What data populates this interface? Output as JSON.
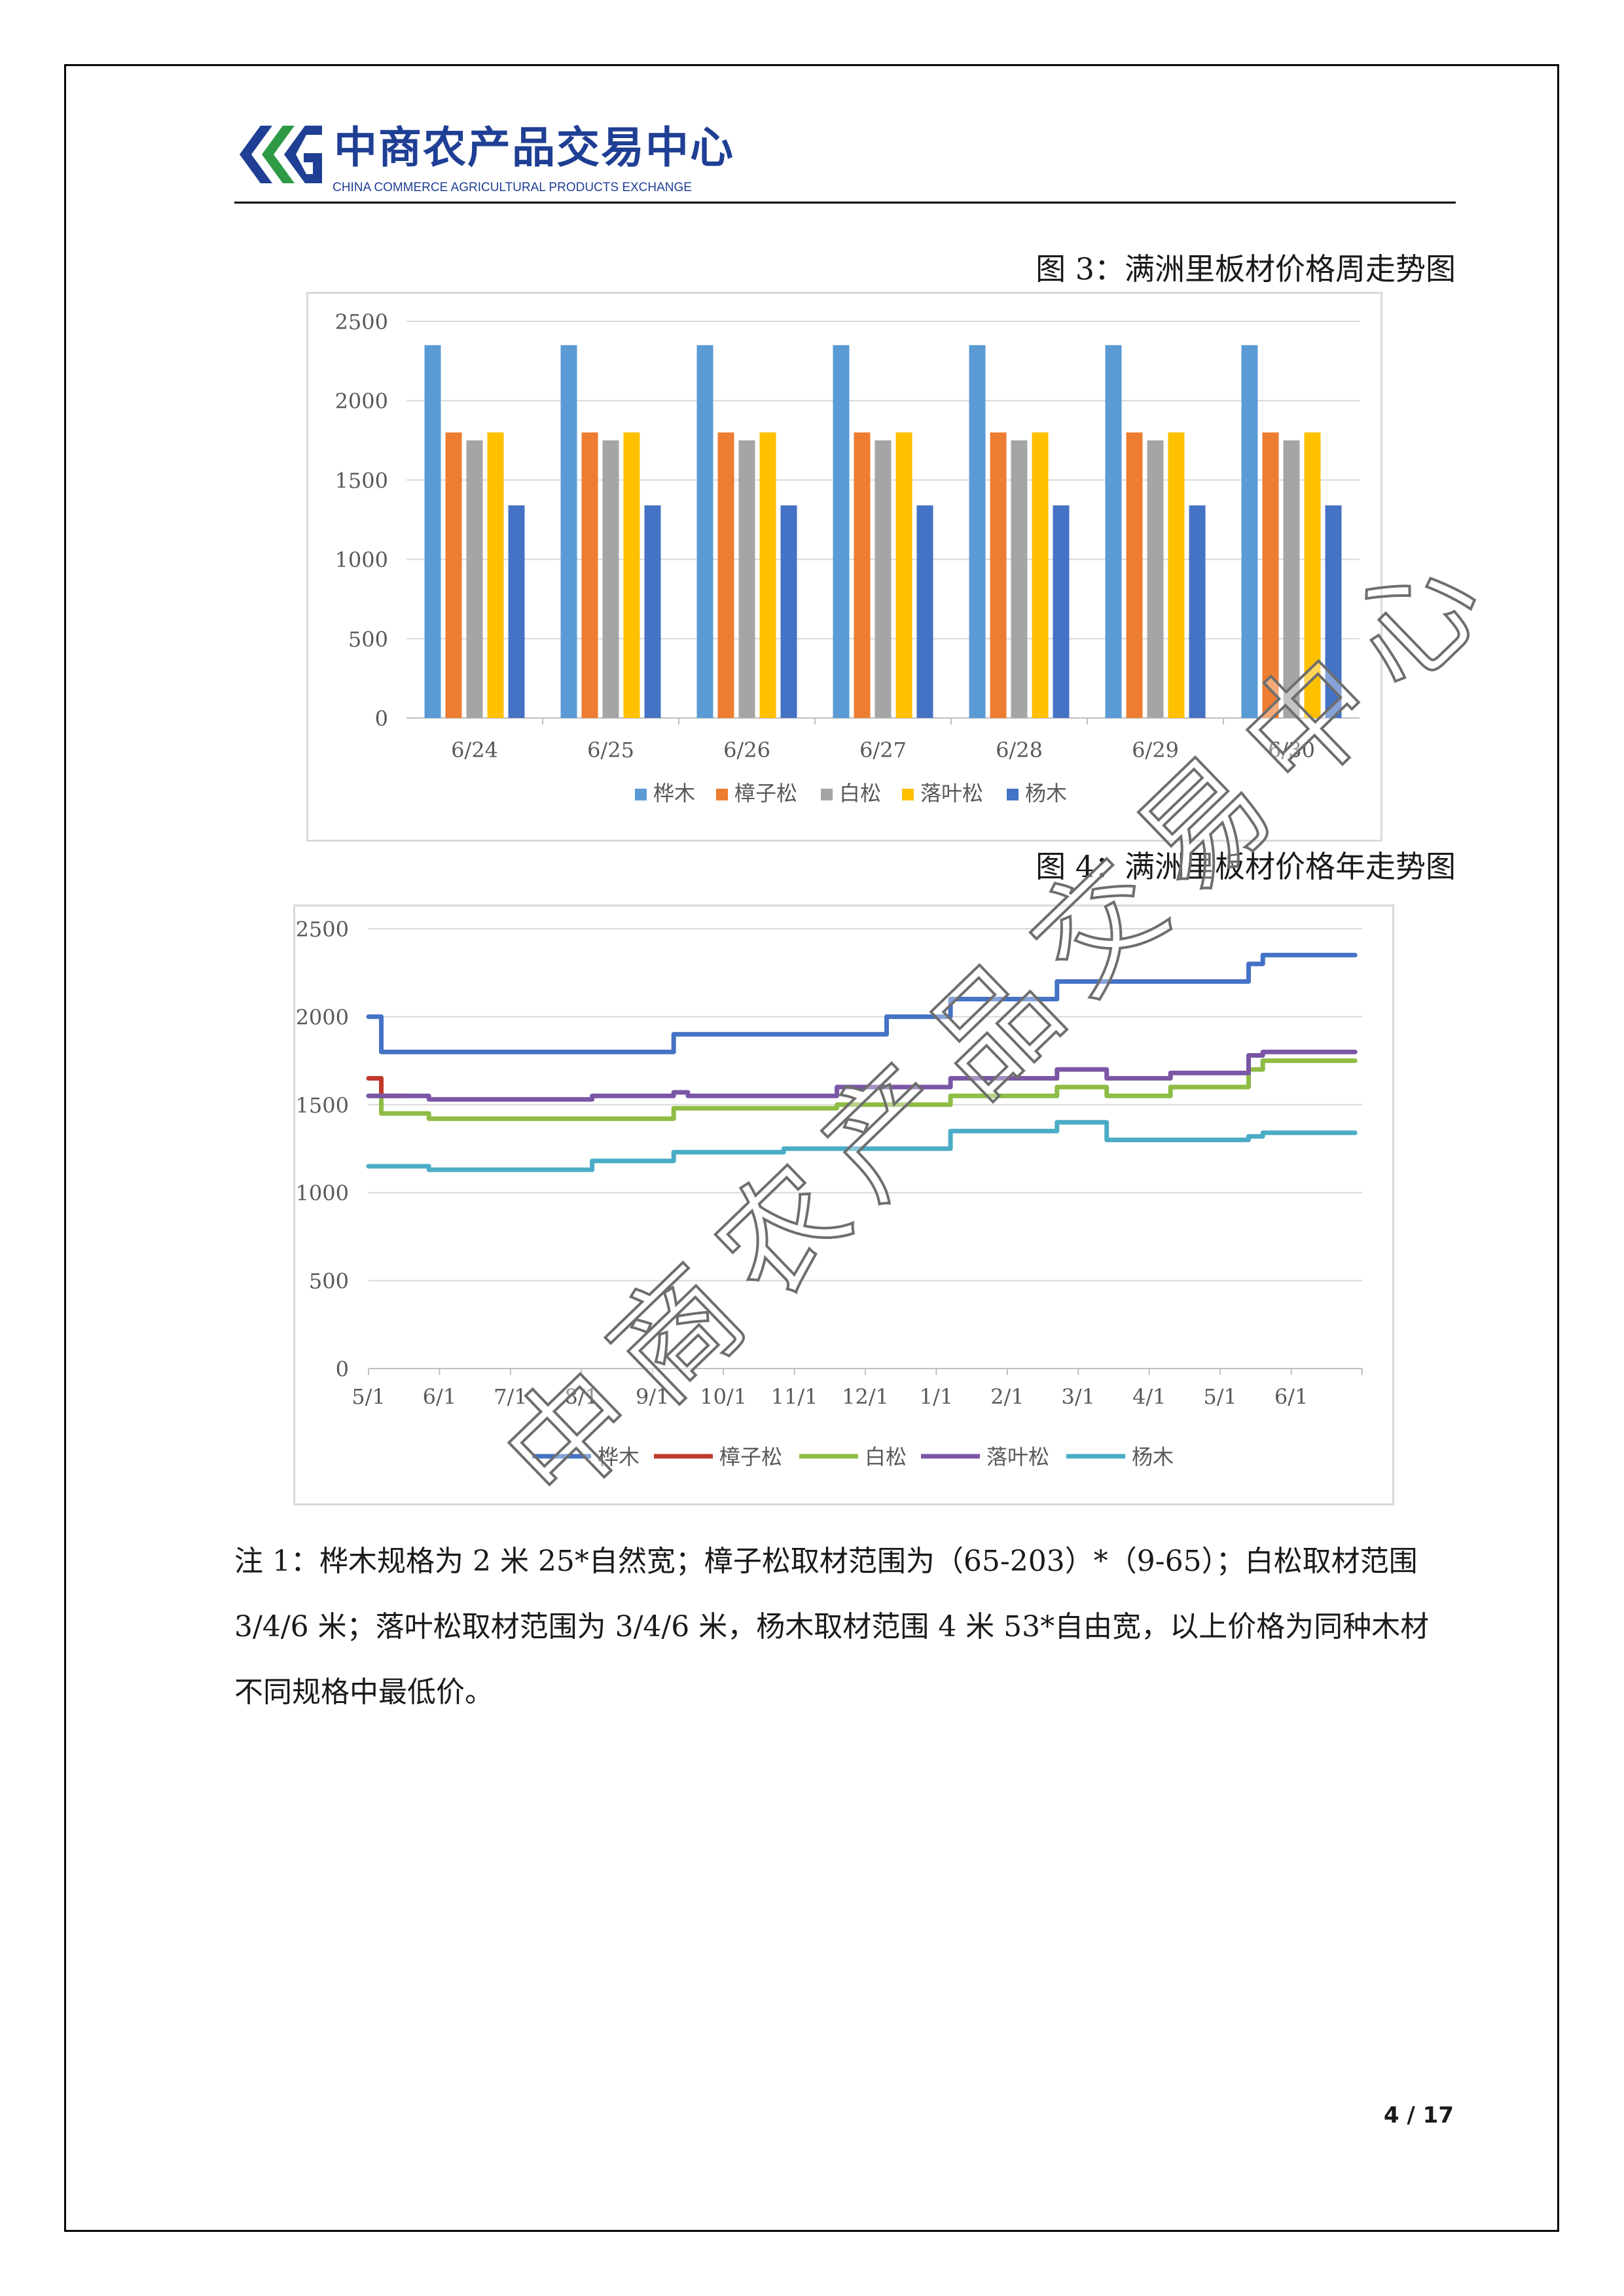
{
  "header": {
    "logo_cn": "中商农产品交易中心",
    "logo_en": "CHINA COMMERCE AGRICULTURAL PRODUCTS EXCHANGE",
    "logo_colors": [
      "#1f3f94",
      "#2e9a45"
    ]
  },
  "figures": [
    {
      "caption": "图 3：满洲里板材价格周走势图"
    },
    {
      "caption": "图 4：满洲里板材价格年走势图"
    }
  ],
  "chart_data": [
    {
      "type": "bar",
      "categories": [
        "6/24",
        "6/25",
        "6/26",
        "6/27",
        "6/28",
        "6/29",
        "6/30"
      ],
      "series": [
        {
          "name": "桦木",
          "color": "#5b9bd5",
          "values": [
            2350,
            2350,
            2350,
            2350,
            2350,
            2350,
            2350
          ]
        },
        {
          "name": "樟子松",
          "color": "#ed7d31",
          "values": [
            1800,
            1800,
            1800,
            1800,
            1800,
            1800,
            1800
          ]
        },
        {
          "name": "白松",
          "color": "#a5a5a5",
          "values": [
            1750,
            1750,
            1750,
            1750,
            1750,
            1750,
            1750
          ]
        },
        {
          "name": "落叶松",
          "color": "#ffc000",
          "values": [
            1800,
            1800,
            1800,
            1800,
            1800,
            1800,
            1800
          ]
        },
        {
          "name": "杨木",
          "color": "#4472c4",
          "values": [
            1340,
            1340,
            1340,
            1340,
            1340,
            1340,
            1340
          ]
        }
      ],
      "yticks": [
        "0",
        "500",
        "1000",
        "1500",
        "2000",
        "2500"
      ],
      "ylim": [
        0,
        2500
      ],
      "grid": true,
      "legend": "bottom"
    },
    {
      "type": "line",
      "x_ticks": [
        "5/1",
        "6/1",
        "7/1",
        "8/1",
        "9/1",
        "10/1",
        "11/1",
        "12/1",
        "1/1",
        "2/1",
        "3/1",
        "4/1",
        "5/1",
        "6/1"
      ],
      "x_range_months": [
        0,
        14
      ],
      "yticks": [
        "0",
        "500",
        "1000",
        "1500",
        "2000",
        "2500"
      ],
      "ylim": [
        0,
        2500
      ],
      "grid": true,
      "legend": "bottom",
      "series": [
        {
          "name": "桦木",
          "color": "#4472c4",
          "points": [
            [
              0,
              2000
            ],
            [
              0.18,
              2000
            ],
            [
              0.18,
              1800
            ],
            [
              4.3,
              1800
            ],
            [
              4.3,
              1900
            ],
            [
              7.3,
              1900
            ],
            [
              7.3,
              2000
            ],
            [
              8.2,
              2000
            ],
            [
              8.2,
              2100
            ],
            [
              9.7,
              2100
            ],
            [
              9.7,
              2200
            ],
            [
              12.4,
              2200
            ],
            [
              12.4,
              2300
            ],
            [
              12.6,
              2300
            ],
            [
              12.6,
              2350
            ],
            [
              13.9,
              2350
            ]
          ]
        },
        {
          "name": "樟子松",
          "color": "#c0392b",
          "points": [
            [
              0,
              1650
            ],
            [
              0.18,
              1650
            ],
            [
              0.18,
              1550
            ],
            [
              0.5,
              1550
            ]
          ]
        },
        {
          "name": "白松",
          "color": "#8fbc45",
          "points": [
            [
              0,
              1550
            ],
            [
              0.18,
              1550
            ],
            [
              0.18,
              1450
            ],
            [
              0.85,
              1450
            ],
            [
              0.85,
              1420
            ],
            [
              4.3,
              1420
            ],
            [
              4.3,
              1480
            ],
            [
              6.6,
              1480
            ],
            [
              6.6,
              1500
            ],
            [
              8.2,
              1500
            ],
            [
              8.2,
              1550
            ],
            [
              9.7,
              1550
            ],
            [
              9.7,
              1600
            ],
            [
              10.4,
              1600
            ],
            [
              10.4,
              1550
            ],
            [
              11.3,
              1550
            ],
            [
              11.3,
              1600
            ],
            [
              12.4,
              1600
            ],
            [
              12.4,
              1700
            ],
            [
              12.6,
              1700
            ],
            [
              12.6,
              1750
            ],
            [
              13.9,
              1750
            ]
          ]
        },
        {
          "name": "落叶松",
          "color": "#7a56a5",
          "points": [
            [
              0,
              1550
            ],
            [
              0.85,
              1550
            ],
            [
              0.85,
              1530
            ],
            [
              3.15,
              1530
            ],
            [
              3.15,
              1550
            ],
            [
              4.3,
              1550
            ],
            [
              4.3,
              1570
            ],
            [
              4.5,
              1570
            ],
            [
              4.5,
              1550
            ],
            [
              6.6,
              1550
            ],
            [
              6.6,
              1600
            ],
            [
              8.2,
              1600
            ],
            [
              8.2,
              1650
            ],
            [
              9.7,
              1650
            ],
            [
              9.7,
              1700
            ],
            [
              10.4,
              1700
            ],
            [
              10.4,
              1650
            ],
            [
              11.3,
              1650
            ],
            [
              11.3,
              1680
            ],
            [
              12.4,
              1680
            ],
            [
              12.4,
              1780
            ],
            [
              12.6,
              1780
            ],
            [
              12.6,
              1800
            ],
            [
              13.9,
              1800
            ]
          ]
        },
        {
          "name": "杨木",
          "color": "#4bacc6",
          "points": [
            [
              0,
              1150
            ],
            [
              0.85,
              1150
            ],
            [
              0.85,
              1130
            ],
            [
              3.15,
              1130
            ],
            [
              3.15,
              1180
            ],
            [
              4.3,
              1180
            ],
            [
              4.3,
              1230
            ],
            [
              5.85,
              1230
            ],
            [
              5.85,
              1250
            ],
            [
              8.2,
              1250
            ],
            [
              8.2,
              1350
            ],
            [
              9.7,
              1350
            ],
            [
              9.7,
              1400
            ],
            [
              10.4,
              1400
            ],
            [
              10.4,
              1300
            ],
            [
              12.4,
              1300
            ],
            [
              12.4,
              1320
            ],
            [
              12.6,
              1320
            ],
            [
              12.6,
              1340
            ],
            [
              13.9,
              1340
            ]
          ]
        }
      ]
    }
  ],
  "note": {
    "lines": [
      "注 1：桦木规格为 2 米 25*自然宽；樟子松取材范围为（65-203）*（9-65）；白松取材范围",
      "3/4/6 米；落叶松取材范围为 3/4/6 米，杨木取材范围 4 米 53*自由宽，以上价格为同种木材",
      "不同规格中最低价。"
    ]
  },
  "footer": {
    "page_number": "4 / 17"
  },
  "watermark": {
    "text": "中商农产品交易中心"
  }
}
